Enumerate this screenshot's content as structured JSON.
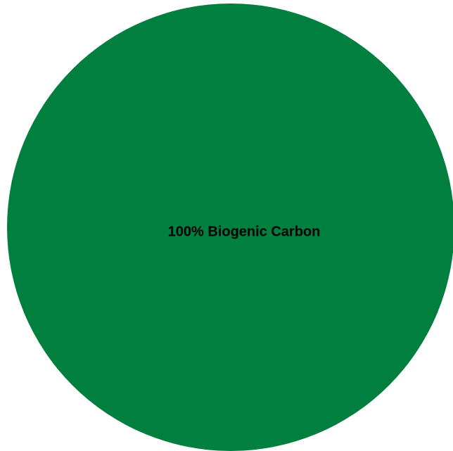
{
  "chart_data": {
    "type": "pie",
    "slices": [
      {
        "label": "100% Biogenic Carbon",
        "value": 100,
        "color": "#007f3f"
      }
    ],
    "legend": "none",
    "data_labels": "inside"
  }
}
